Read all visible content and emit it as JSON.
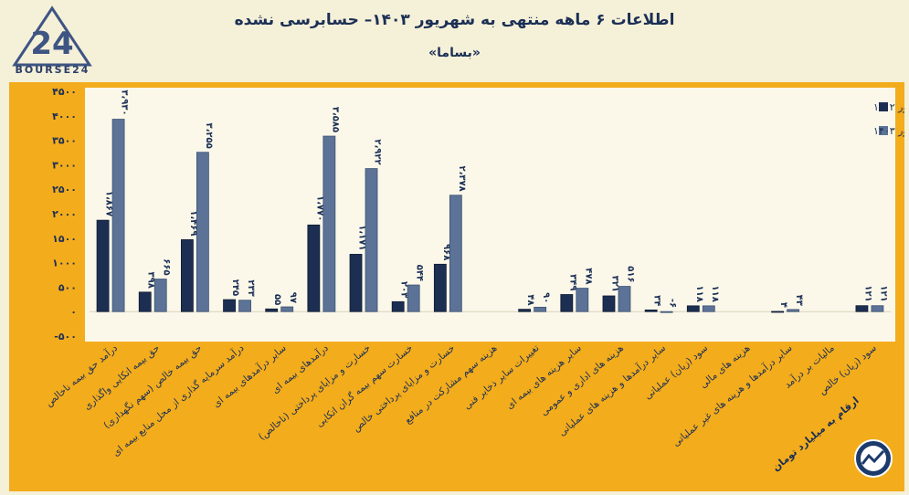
{
  "header": {
    "title": "اطلاعات ۶ ماهه منتهی به شهریور ۱۴۰۳– حسابرسی نشده",
    "subtitle": "«بساما»",
    "logo_text": "BOURSE24",
    "unit_note": "ارقام به میلیارد تومان"
  },
  "colors": {
    "background": "#f5f0d8",
    "panel": "#f3ac1c",
    "plot": "#fbf8ea",
    "series_1402": "#1c2f52",
    "series_1403": "#5c7397",
    "text": "#1b2f55"
  },
  "chart_data": {
    "type": "bar",
    "ylim": [
      -500,
      4500
    ],
    "yticks": [
      -500,
      0,
      500,
      1000,
      1500,
      2000,
      2500,
      3000,
      3500,
      4000,
      4500
    ],
    "ytick_labels": [
      "-۵۰۰",
      "۰",
      "۵۰۰",
      "۱۰۰۰",
      "۱۵۰۰",
      "۲۰۰۰",
      "۲۵۰۰",
      "۳۰۰۰",
      "۳۵۰۰",
      "۴۰۰۰",
      "۴۵۰۰"
    ],
    "legend_position": "top-right",
    "categories": [
      "درآمد حق بیمه ناخالص",
      "حق بیمه اتکایی واگذاری",
      "حق بیمه خالص (سهم نگهداری)",
      "درآمد سرمایه گذاری از محل منابع بیمه ای",
      "سایر درآمدهای بیمه ای",
      "درآمدهای بیمه ای",
      "خسارت و مزایای پرداختی (ناخالص)",
      "خسارت سهم بیمه گران اتکایی",
      "خسارت و مزایای پرداختی خالص",
      "هزینه سهم مشارکت در منافع",
      "تغییرات سایر ذخایر فنی",
      "سایر هزینه های بیمه ای",
      "هزینه های اداری و عمومی",
      "سایر درآمدها و هزینه های عملیاتی",
      "سود (زیان) عملیاتی",
      "هزینه های مالی",
      "سایر درآمدها و هزینه های غیر عملیاتی",
      "مالیات بر درآمد",
      "سود (زیان) خالص"
    ],
    "series": [
      {
        "name": "عملکرد منتهی به شهریور ۱۴۰۲",
        "values": [
          1867,
          398,
          1469,
          245,
          55,
          1770,
          1171,
          203,
          968,
          null,
          48,
          349,
          321,
          34,
          118,
          null,
          4,
          null,
          121
        ],
        "labels": [
          "۱،۸۶۷",
          "۳۹۸",
          "۱،۴۶۹",
          "۲۴۵",
          "۵۵",
          "۱،۷۷۰",
          "۱،۱۷۱",
          "۲۰۳",
          "۹۶۸",
          "",
          "۴۸",
          "۳۴۹",
          "۳۲۱",
          "۳۴",
          "۱۱۸",
          "",
          "۴",
          "",
          "۱۲۱"
        ]
      },
      {
        "name": "عملکرد منتهی به شهریور ۱۴۰۳",
        "values": [
          3930,
          665,
          3255,
          233,
          97,
          3585,
          2922,
          544,
          2378,
          null,
          90,
          478,
          516,
          -6,
          118,
          null,
          43,
          null,
          121
        ],
        "labels": [
          "۳،۹۳۰",
          "۶۶۵",
          "۳،۲۵۵",
          "۲۳۳",
          "۹۷",
          "۳،۵۸۵",
          "۲،۹۲۲",
          "۵۴۴",
          "۲،۳۷۸",
          "",
          "۹۰",
          "۴۷۸",
          "۵۱۶",
          "-۶",
          "۱۱۸",
          "",
          "۴۳",
          "",
          "۱۲۱"
        ]
      }
    ]
  }
}
